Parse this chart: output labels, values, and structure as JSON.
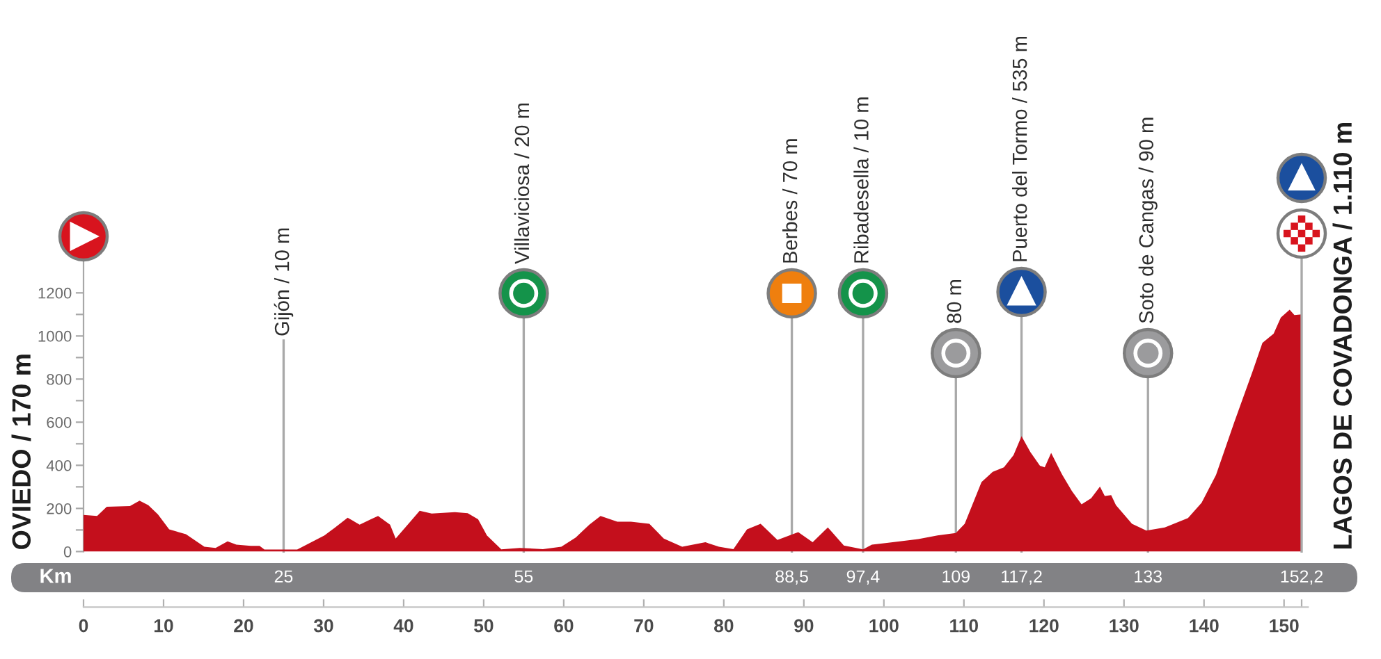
{
  "chart_data": {
    "type": "area",
    "color": "#c40f1c",
    "x": [
      0,
      1.7,
      2.9,
      5.8,
      7,
      8.1,
      9.3,
      10.7,
      12.8,
      15.1,
      16.5,
      18,
      19.1,
      20.9,
      22,
      22.6,
      26.7,
      30.1,
      31.3,
      33,
      34.5,
      35.9,
      36.8,
      38.3,
      39,
      40.6,
      42,
      43.5,
      46.4,
      48,
      49.3,
      50.4,
      52.2,
      54.5,
      57.4,
      59.7,
      61.5,
      63.2,
      64.6,
      66.7,
      68.4,
      70.7,
      72.5,
      74.8,
      77.7,
      79.4,
      81.2,
      82.9,
      84.6,
      86.7,
      89.3,
      91.1,
      93,
      95,
      97.4,
      98.5,
      102,
      104.3,
      106.7,
      109,
      110.1,
      112.2,
      113.6,
      115,
      116.2,
      117.2,
      118.3,
      119.5,
      120.1,
      120.9,
      122.3,
      123.5,
      124.7,
      125.9,
      127,
      127.6,
      128.4,
      129,
      131,
      132.8,
      135.1,
      138,
      139.7,
      141.5,
      143.8,
      146.1,
      147.3,
      148.7,
      149.6,
      150.7,
      151.3,
      152.2
    ],
    "values": [
      170,
      165,
      208,
      211,
      236,
      215,
      172,
      103,
      80,
      22,
      17,
      47,
      32,
      26,
      26,
      9,
      9,
      75,
      108,
      157,
      125,
      150,
      165,
      125,
      60,
      129,
      189,
      176,
      183,
      178,
      150,
      75,
      10,
      17,
      11,
      22,
      65,
      125,
      165,
      138,
      138,
      129,
      60,
      22,
      43,
      22,
      11,
      103,
      129,
      54,
      90,
      43,
      112,
      28,
      10,
      32,
      47,
      58,
      75,
      86,
      129,
      322,
      370,
      391,
      447,
      535,
      462,
      398,
      391,
      458,
      355,
      280,
      219,
      247,
      301,
      258,
      262,
      215,
      129,
      97,
      112,
      155,
      226,
      355,
      602,
      839,
      968,
      1011,
      1086,
      1122,
      1097,
      1100
    ],
    "xlim": [
      0,
      153
    ],
    "xticks": [
      0,
      10,
      20,
      30,
      40,
      50,
      60,
      70,
      80,
      90,
      100,
      110,
      120,
      130,
      140,
      150,
      {
        "value": 152.2,
        "label": null
      }
    ],
    "ylim": [
      0,
      1350
    ],
    "yticks": [
      0,
      {
        "value": 100,
        "label": null
      },
      200,
      {
        "value": 300,
        "label": null
      },
      400,
      {
        "value": 500,
        "label": null
      },
      600,
      {
        "value": 700,
        "label": null
      },
      800,
      {
        "value": 900,
        "label": null
      },
      1000,
      {
        "value": 1100,
        "label": null
      },
      1200
    ],
    "x2lim": [
      0,
      153
    ],
    "x2ticks": [
      25,
      55,
      {
        "value": 88.5,
        "label": "88,5"
      },
      {
        "value": 97.4,
        "label": "97,4"
      },
      109,
      {
        "value": 117.2,
        "label": "117,2"
      },
      133,
      {
        "value": 152.2,
        "label": "152,2"
      }
    ],
    "x2label": "Km",
    "annotations": [
      "OVIEDO / 170 m"
    ],
    "ref_lines": [
      {
        "axis": "x",
        "value": 25,
        "label": "Gijón / 10 m",
        "color": "#a9a9a9"
      },
      {
        "axis": "x",
        "value": 55,
        "label": "Villaviciosa / 20 m",
        "color": "#a9a9a9"
      },
      {
        "axis": "x",
        "value": 88.5,
        "label": "Berbes / 70 m",
        "color": "#a9a9a9"
      },
      {
        "axis": "x",
        "value": 97.4,
        "label": "Ribadesella / 10 m",
        "color": "#a9a9a9"
      },
      {
        "axis": "x",
        "value": 109,
        "label": "80 m",
        "color": "#a9a9a9"
      },
      {
        "axis": "x",
        "value": 117.2,
        "label": "Puerto del Tormo / 535 m",
        "color": "#a9a9a9"
      },
      {
        "axis": "x",
        "value": 133,
        "label": "Soto de Cangas / 90 m",
        "color": "#a9a9a9"
      },
      {
        "axis": "x",
        "value": 152.2,
        "label": "LAGOS DE COVADONGA / 1.110 m",
        "color": "#a9a9a9"
      }
    ]
  }
}
